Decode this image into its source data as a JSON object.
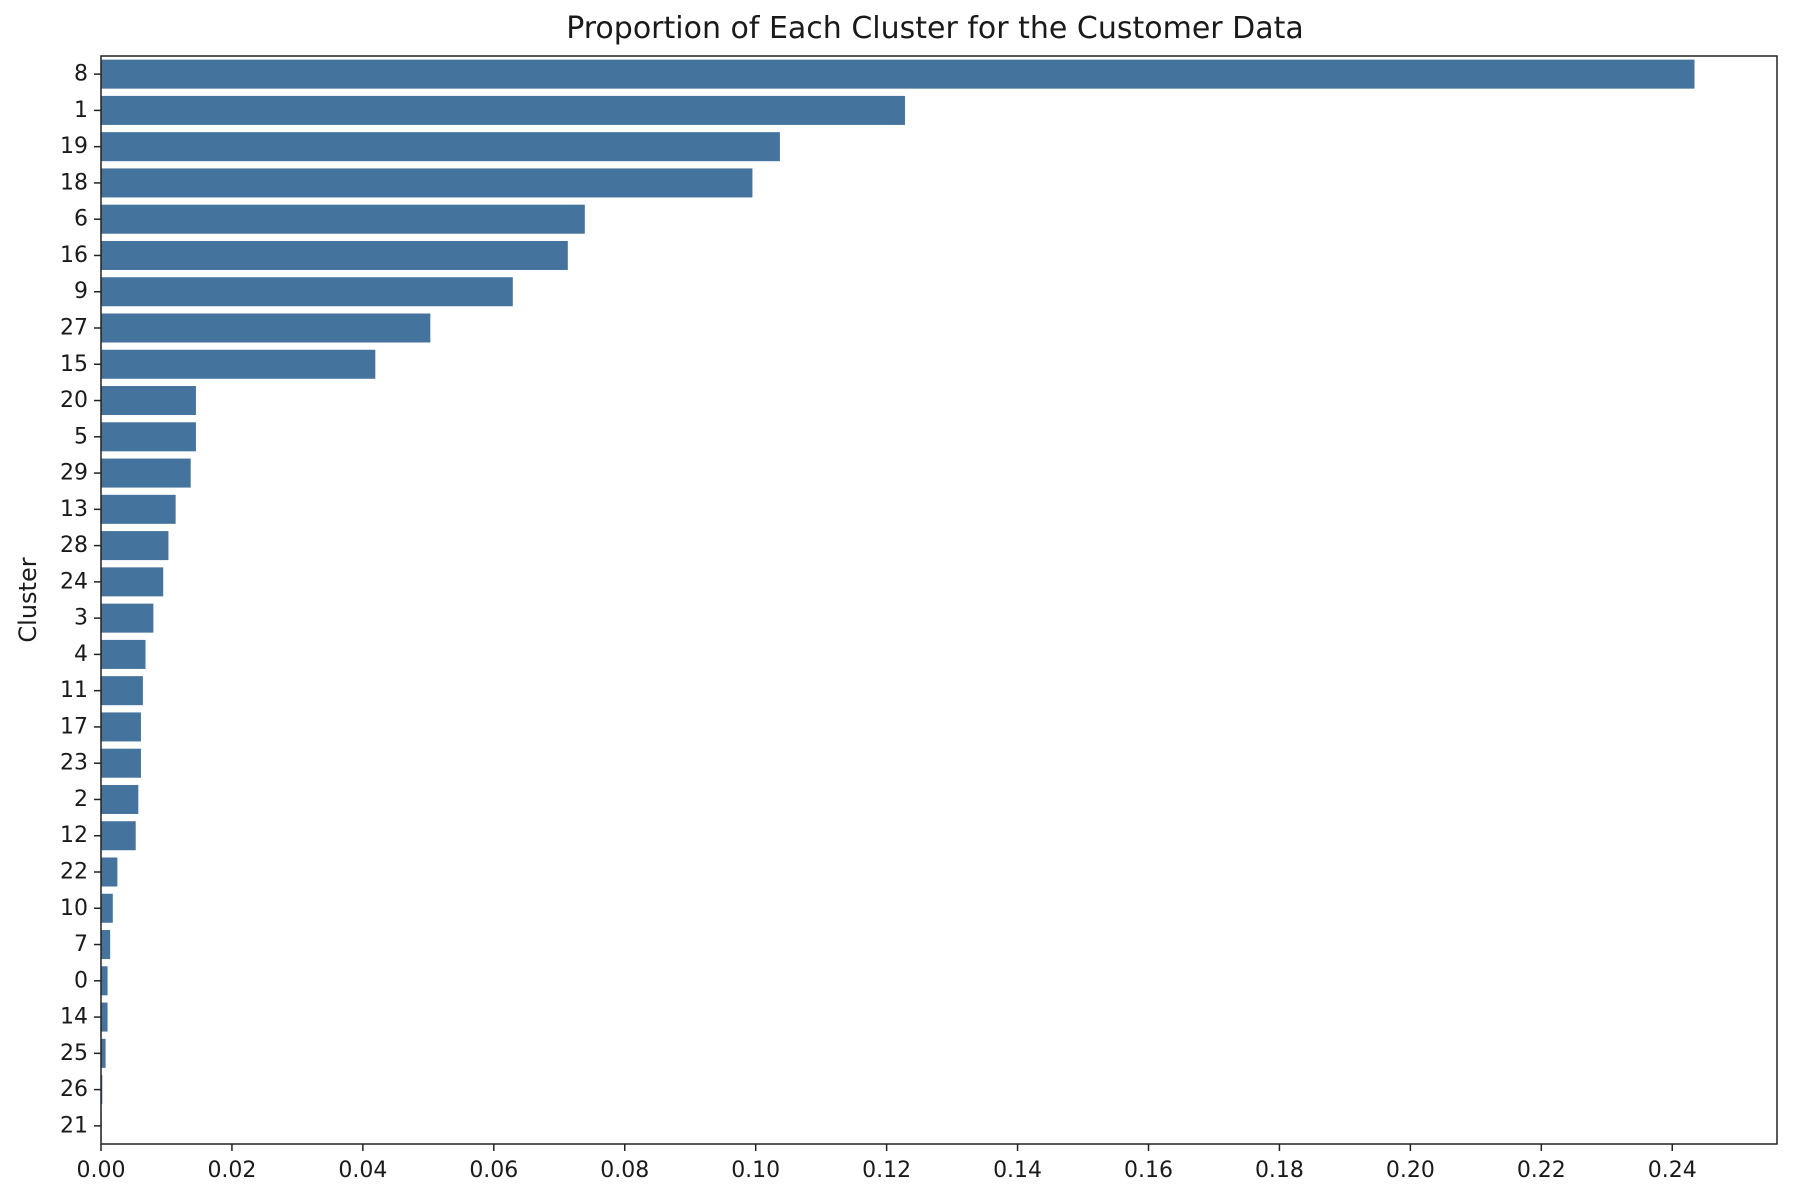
{
  "chart_data": {
    "type": "bar",
    "orientation": "horizontal",
    "title": "Proportion of Each Cluster for the Customer Data",
    "xlabel": "",
    "ylabel": "Cluster",
    "xlim": [
      0,
      0.256
    ],
    "xticks": [
      "0.00",
      "0.02",
      "0.04",
      "0.06",
      "0.08",
      "0.10",
      "0.12",
      "0.14",
      "0.16",
      "0.18",
      "0.20",
      "0.22",
      "0.24"
    ],
    "categories": [
      "8",
      "1",
      "19",
      "18",
      "6",
      "16",
      "9",
      "27",
      "15",
      "20",
      "5",
      "29",
      "13",
      "28",
      "24",
      "3",
      "4",
      "11",
      "17",
      "23",
      "2",
      "12",
      "22",
      "10",
      "7",
      "0",
      "14",
      "25",
      "26",
      "21"
    ],
    "values": [
      0.2434,
      0.1228,
      0.1037,
      0.0995,
      0.0739,
      0.0713,
      0.0629,
      0.0503,
      0.0419,
      0.0145,
      0.0145,
      0.0137,
      0.0114,
      0.0103,
      0.0095,
      0.008,
      0.0068,
      0.0064,
      0.0061,
      0.0061,
      0.0057,
      0.0053,
      0.0025,
      0.0018,
      0.0014,
      0.001,
      0.001,
      0.0007,
      0.0002,
      0.0001
    ],
    "bar_color": "#44739d",
    "grid": false
  }
}
